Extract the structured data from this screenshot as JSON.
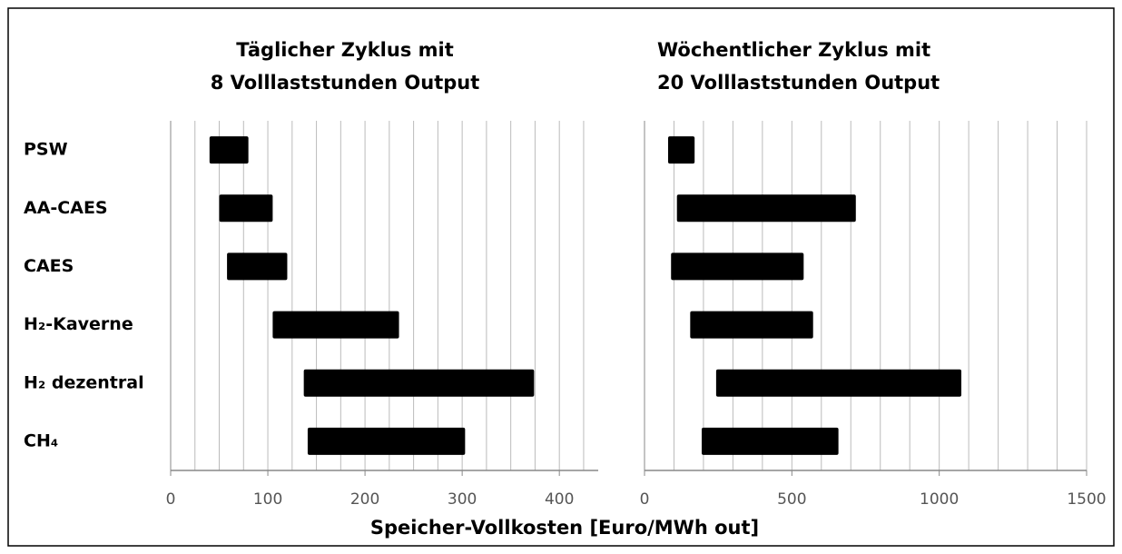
{
  "chart_data": [
    {
      "type": "range-bar",
      "title": [
        "Täglicher Zyklus mit",
        "8 Volllaststunden Output"
      ],
      "categories": [
        "PSW",
        "AA-CAES",
        "CAES",
        "H₂-Kaverne",
        "H₂ dezentral",
        "CH₄"
      ],
      "values": [
        [
          40,
          80
        ],
        [
          50,
          105
        ],
        [
          58,
          120
        ],
        [
          105,
          235
        ],
        [
          137,
          374
        ],
        [
          141,
          303
        ]
      ],
      "color": "#000000",
      "xlim": [
        0,
        440
      ],
      "xticks": [
        0,
        100,
        200,
        300,
        400
      ],
      "grid_xticks": [
        25,
        50,
        75,
        100,
        125,
        150,
        175,
        200,
        225,
        250,
        275,
        300,
        325,
        350,
        375,
        400,
        425
      ]
    },
    {
      "type": "range-bar",
      "title": [
        "Wöchentlicher Zyklus mit",
        "20 Volllaststunden Output"
      ],
      "values": [
        [
          80,
          170
        ],
        [
          110,
          717
        ],
        [
          90,
          540
        ],
        [
          155,
          572
        ],
        [
          243,
          1075
        ],
        [
          194,
          658
        ]
      ],
      "color": "#000000",
      "xlim": [
        0,
        1500
      ],
      "xticks": [
        0,
        500,
        1000,
        1500
      ],
      "grid_xticks": [
        100,
        200,
        300,
        400,
        500,
        600,
        700,
        800,
        900,
        1000,
        1100,
        1200,
        1300,
        1400,
        1500
      ]
    }
  ],
  "xlabel": "Speicher-Vollkosten [Euro/MWh out]"
}
